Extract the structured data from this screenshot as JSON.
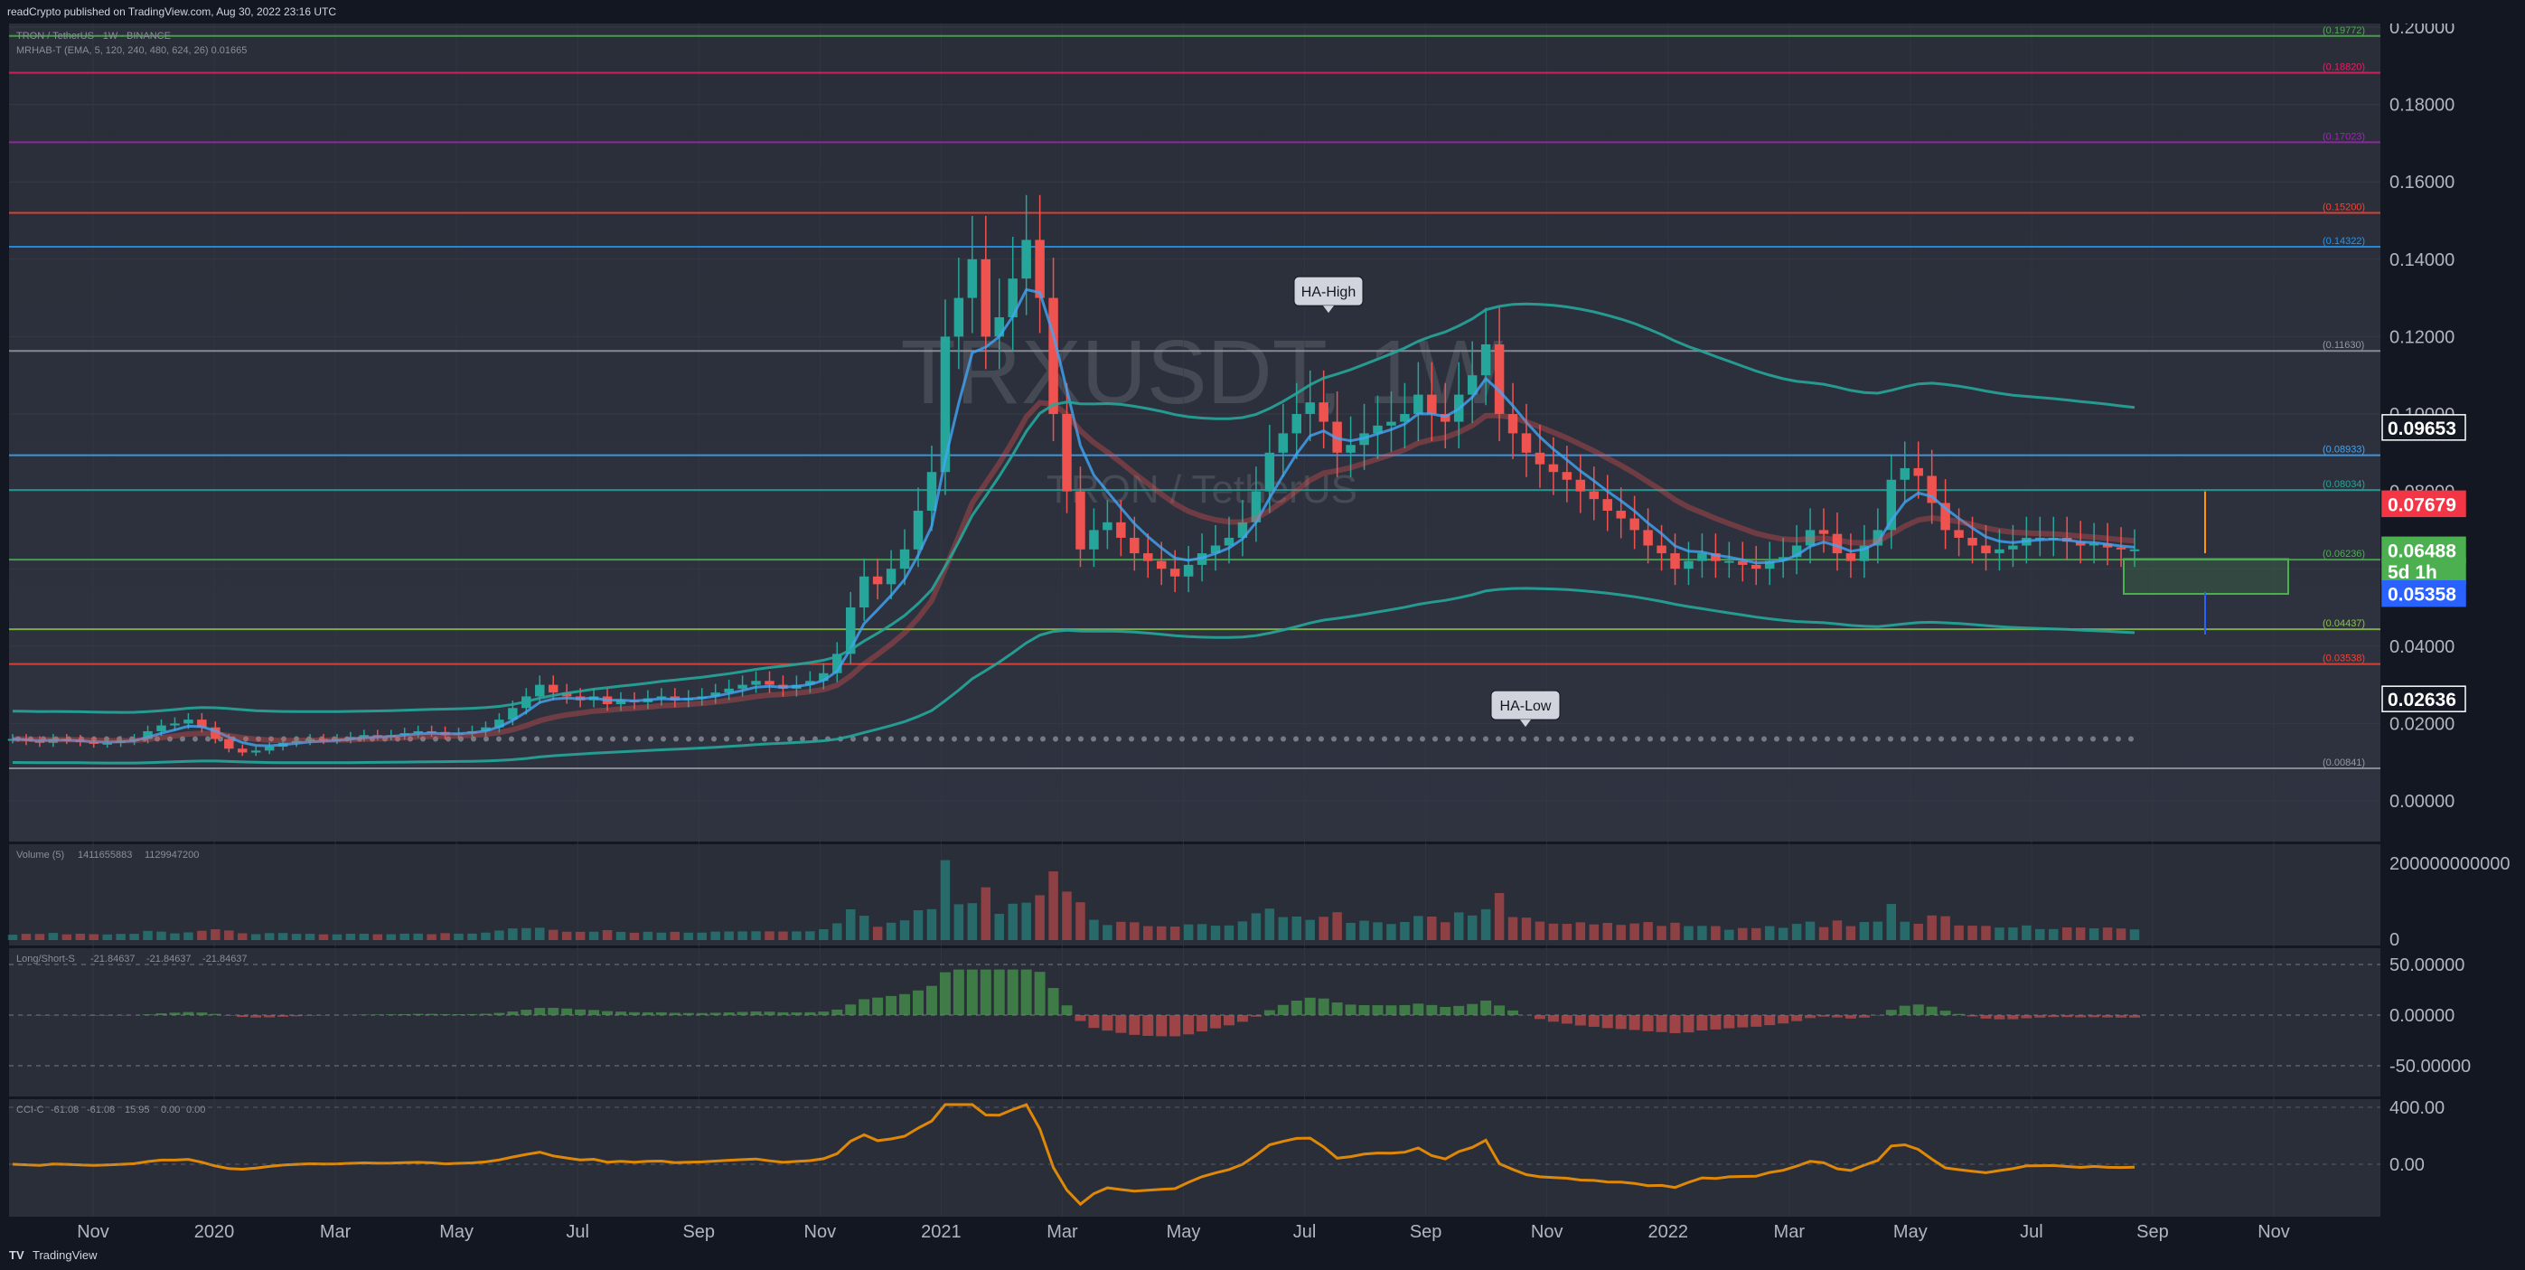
{
  "header": {
    "publisher": "readCrypto published on TradingView.com, Aug 30, 2022 23:16 UTC"
  },
  "footer": {
    "brand": "TradingView"
  },
  "colors": {
    "up": "#26a69a",
    "down": "#ef5350",
    "background": "#131722",
    "pane": "#2a2e39"
  },
  "chart_data": {
    "type": "candlestick",
    "symbol": "TRXUSDT, 1W",
    "description": "TRON / TetherUS",
    "legend_main": "TRON / TetherUS · 1W · BINANCE",
    "legend_indicator": "MRHAB-T (EMA, 5, 120, 240, 480, 624, 26)  0.01665",
    "y_axis": {
      "ticks": [
        "0.20000",
        "0.18000",
        "0.16000",
        "0.14000",
        "0.12000",
        "0.10000",
        "0.08000",
        "0.06000",
        "0.04000",
        "0.02000",
        "0.00000"
      ],
      "ylim": [
        -0.01,
        0.2
      ]
    },
    "x_axis": {
      "ticks": [
        "Nov",
        "2020",
        "Mar",
        "May",
        "Jul",
        "Sep",
        "Nov",
        "2021",
        "Mar",
        "May",
        "Jul",
        "Sep",
        "Nov",
        "2022",
        "Mar",
        "May",
        "Jul",
        "Sep",
        "Nov"
      ]
    },
    "price_tags": [
      {
        "label": "0.09653",
        "value": 0.09653,
        "bg": "#131722",
        "fg": "#ffffff",
        "border": "#ffffff"
      },
      {
        "label": "0.07679",
        "value": 0.07679,
        "bg": "#f23645",
        "fg": "#ffffff",
        "border": "#f23645"
      },
      {
        "label": "0.06488",
        "value": 0.06488,
        "bg": "#4caf50",
        "fg": "#ffffff",
        "border": "#4caf50"
      },
      {
        "label": "5d 1h",
        "value": 0.0594,
        "bg": "#4caf50",
        "fg": "#ffffff",
        "border": "#4caf50"
      },
      {
        "label": "0.05358",
        "value": 0.05358,
        "bg": "#2962ff",
        "fg": "#ffffff",
        "border": "#2962ff"
      },
      {
        "label": "0.02636",
        "value": 0.02636,
        "bg": "#131722",
        "fg": "#ffffff",
        "border": "#ffffff"
      }
    ],
    "fib_levels": [
      {
        "label": "(0.19772)",
        "value": 0.19772,
        "color": "#4caf50"
      },
      {
        "label": "(0.18820)",
        "value": 0.1882,
        "color": "#e91e63"
      },
      {
        "label": "(0.17023)",
        "value": 0.17023,
        "color": "#9c27b0"
      },
      {
        "label": "(0.15200)",
        "value": 0.152,
        "color": "#f44336"
      },
      {
        "label": "(0.14322)",
        "value": 0.14322,
        "color": "#2196f3"
      },
      {
        "label": "(0.11630)",
        "value": 0.1163,
        "color": "#9598a1"
      },
      {
        "label": "(0.08933)",
        "value": 0.08933,
        "color": "#42a5f5"
      },
      {
        "label": "(0.08034)",
        "value": 0.08034,
        "color": "#26a69a"
      },
      {
        "label": "(0.06236)",
        "value": 0.06236,
        "color": "#4caf50"
      },
      {
        "label": "(0.04437)",
        "value": 0.04437,
        "color": "#8bc34a"
      },
      {
        "label": "(0.03538)",
        "value": 0.03538,
        "color": "#f44336"
      },
      {
        "label": "(0.00841)",
        "value": 0.00841,
        "color": "#9598a1"
      }
    ],
    "annotations": [
      {
        "text": "HA-High",
        "value": 0.128
      },
      {
        "text": "HA-Low",
        "value": 0.021
      }
    ],
    "volume": {
      "title": "Volume (5)",
      "values": [
        "1411655883",
        "1129947200"
      ],
      "ticks": [
        "200000000000",
        "0"
      ]
    },
    "long_short": {
      "title": "Long/Short-S",
      "values": [
        "-21.84637",
        "-21.84637",
        "-21.84637"
      ],
      "ticks": [
        "50.00000",
        "0.00000",
        "-50.00000"
      ]
    },
    "cci": {
      "title": "CCI-C",
      "values": [
        "-61.08",
        "-61.08",
        "15.95",
        "0.00",
        "0.00"
      ],
      "ticks": [
        "400.00",
        "0.00"
      ]
    },
    "series_close": [
      0.016,
      0.0155,
      0.015,
      0.016,
      0.0158,
      0.0152,
      0.0148,
      0.015,
      0.0155,
      0.016,
      0.018,
      0.0195,
      0.02,
      0.021,
      0.019,
      0.016,
      0.0135,
      0.0125,
      0.013,
      0.014,
      0.015,
      0.0155,
      0.016,
      0.0158,
      0.016,
      0.0165,
      0.017,
      0.0168,
      0.017,
      0.0175,
      0.018,
      0.0178,
      0.017,
      0.0175,
      0.018,
      0.019,
      0.021,
      0.024,
      0.027,
      0.03,
      0.028,
      0.027,
      0.026,
      0.027,
      0.025,
      0.026,
      0.0255,
      0.0265,
      0.027,
      0.026,
      0.0265,
      0.027,
      0.028,
      0.029,
      0.03,
      0.031,
      0.03,
      0.029,
      0.03,
      0.031,
      0.033,
      0.038,
      0.05,
      0.058,
      0.056,
      0.06,
      0.065,
      0.075,
      0.085,
      0.12,
      0.13,
      0.14,
      0.12,
      0.125,
      0.135,
      0.145,
      0.13,
      0.1,
      0.08,
      0.065,
      0.07,
      0.072,
      0.068,
      0.064,
      0.062,
      0.06,
      0.058,
      0.061,
      0.064,
      0.066,
      0.068,
      0.072,
      0.08,
      0.09,
      0.095,
      0.1,
      0.103,
      0.098,
      0.09,
      0.092,
      0.095,
      0.097,
      0.098,
      0.1,
      0.105,
      0.1,
      0.098,
      0.105,
      0.11,
      0.118,
      0.1,
      0.095,
      0.09,
      0.087,
      0.085,
      0.083,
      0.08,
      0.078,
      0.075,
      0.073,
      0.07,
      0.066,
      0.064,
      0.06,
      0.062,
      0.064,
      0.062,
      0.062,
      0.061,
      0.06,
      0.062,
      0.063,
      0.066,
      0.07,
      0.069,
      0.064,
      0.062,
      0.066,
      0.07,
      0.083,
      0.086,
      0.084,
      0.077,
      0.07,
      0.068,
      0.066,
      0.064,
      0.065,
      0.066,
      0.068,
      0.068,
      0.068,
      0.067,
      0.066,
      0.0665,
      0.0655,
      0.065,
      0.065
    ]
  }
}
